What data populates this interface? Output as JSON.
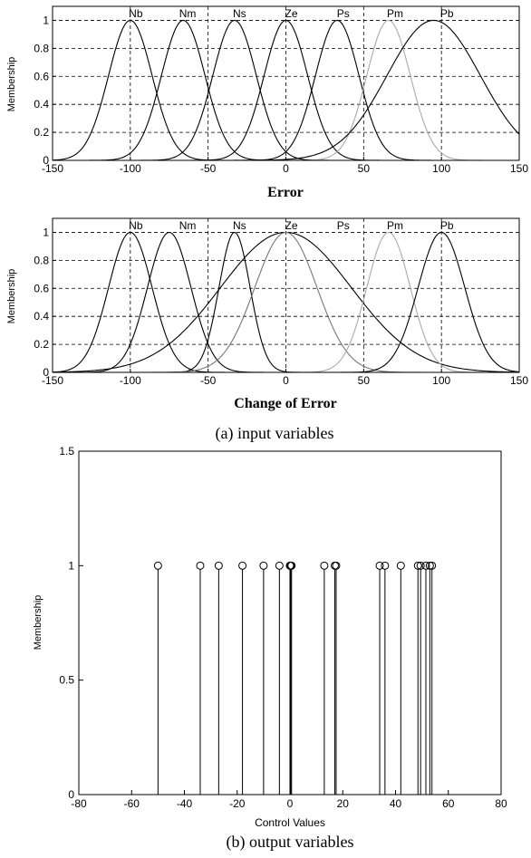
{
  "chart_data": [
    {
      "type": "line",
      "xlabel": "Error",
      "ylabel": "Membership",
      "xlim": [
        -150,
        150
      ],
      "ylim": [
        0,
        1.1
      ],
      "xticks": [
        "-150",
        "-100",
        "-50",
        "0",
        "50",
        "100",
        "150"
      ],
      "yticks": [
        "0",
        "0.2",
        "0.4",
        "0.6",
        "0.8",
        "1"
      ],
      "grid": true,
      "series": [
        {
          "name": "Nb",
          "mean": -100,
          "sigma": 14,
          "color": "#000000"
        },
        {
          "name": "Nm",
          "mean": -66,
          "sigma": 14,
          "color": "#000000"
        },
        {
          "name": "Ns",
          "mean": -33,
          "sigma": 14,
          "color": "#000000"
        },
        {
          "name": "Ze",
          "mean": 0,
          "sigma": 14,
          "color": "#000000"
        },
        {
          "name": "Ps",
          "mean": 33,
          "sigma": 14,
          "color": "#000000"
        },
        {
          "name": "Pm",
          "mean": 66,
          "sigma": 14,
          "color": "#aaaaaa"
        },
        {
          "name": "Pb",
          "mean": 95,
          "sigma": 30,
          "color": "#000000"
        }
      ]
    },
    {
      "type": "line",
      "xlabel": "Change of Error",
      "ylabel": "Membership",
      "xlim": [
        -150,
        150
      ],
      "ylim": [
        0,
        1.1
      ],
      "xticks": [
        "-150",
        "-100",
        "-50",
        "0",
        "50",
        "100",
        "150"
      ],
      "yticks": [
        "0",
        "0.2",
        "0.4",
        "0.6",
        "0.8",
        "1"
      ],
      "grid": true,
      "series": [
        {
          "name": "Nb",
          "mean": -100,
          "sigma": 14,
          "color": "#000000"
        },
        {
          "name": "Nm",
          "mean": -75,
          "sigma": 14,
          "color": "#000000"
        },
        {
          "name": "Ns",
          "mean": -33,
          "sigma": 10,
          "color": "#000000"
        },
        {
          "name": "Ze",
          "mean": 0,
          "sigma": 42,
          "color": "#000000"
        },
        {
          "name": "Ps",
          "mean": 0,
          "sigma": 20,
          "color": "#777777"
        },
        {
          "name": "Pm",
          "mean": 66,
          "sigma": 14,
          "color": "#aaaaaa"
        },
        {
          "name": "Pb",
          "mean": 100,
          "sigma": 15,
          "color": "#000000"
        }
      ]
    },
    {
      "type": "scatter",
      "xlabel": "Control Values",
      "ylabel": "Membership",
      "xlim": [
        -80,
        80
      ],
      "ylim": [
        0,
        1.5
      ],
      "xticks": [
        "-80",
        "-60",
        "-40",
        "-20",
        "0",
        "20",
        "40",
        "60",
        "80"
      ],
      "yticks": [
        "0",
        "0.5",
        "1",
        "1.5"
      ],
      "grid": false,
      "stems": [
        -50,
        -34,
        -27,
        -18,
        -10,
        -4,
        0,
        0.3,
        0.6,
        13,
        17,
        17.5,
        34,
        36,
        42,
        48.5,
        49.5,
        51.5,
        53,
        53.8
      ],
      "stem_value": 1
    }
  ],
  "captions": {
    "a": "(a) input variables",
    "b": "(b) output variables"
  }
}
